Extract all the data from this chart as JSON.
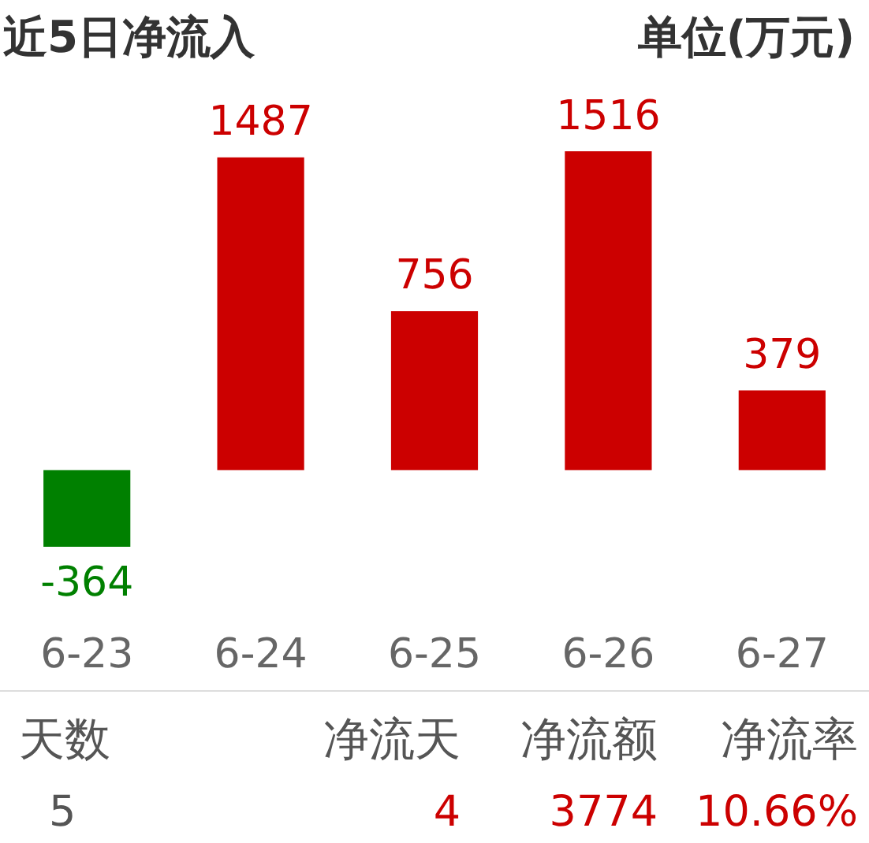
{
  "chart_data": {
    "type": "bar",
    "title": "近5日净流入",
    "subtitle": "单位(万元)",
    "categories": [
      "6-23",
      "6-24",
      "6-25",
      "6-26",
      "6-27"
    ],
    "values": [
      -364,
      1487,
      756,
      1516,
      379
    ],
    "colors": [
      "#008000",
      "#cc0000",
      "#cc0000",
      "#cc0000",
      "#cc0000"
    ],
    "data_labels": true,
    "annotations": [
      "天数",
      "净流天",
      "净流额",
      "净流率",
      "5",
      "4",
      "3774",
      "10.66%"
    ]
  }
}
